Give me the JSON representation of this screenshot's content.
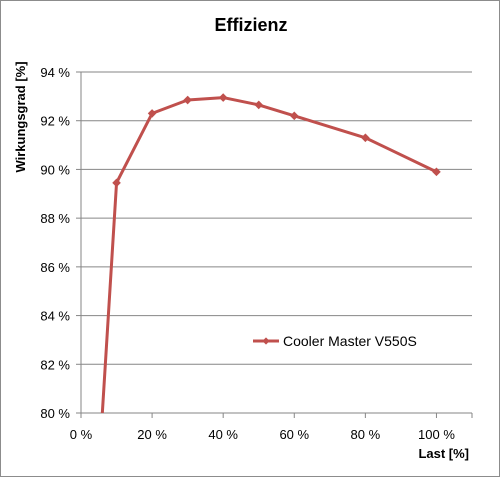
{
  "chart_data": {
    "type": "line",
    "title": "Effizienz",
    "xlabel": "Last [%]",
    "ylabel": "Wirkungsgrad [%]",
    "xlim": [
      0,
      110
    ],
    "ylim": [
      80,
      94
    ],
    "x_ticks": [
      0,
      20,
      40,
      60,
      80,
      100
    ],
    "x_tick_labels": [
      "0 %",
      "20 %",
      "40 %",
      "60 %",
      "80 %",
      "100 %"
    ],
    "y_ticks": [
      80,
      82,
      84,
      86,
      88,
      90,
      92,
      94
    ],
    "y_tick_labels": [
      "80 %",
      "82 %",
      "84 %",
      "86 %",
      "88 %",
      "90 %",
      "92 %",
      "94 %"
    ],
    "grid": true,
    "legend_position": "right-center",
    "series": [
      {
        "name": "Cooler Master V550S",
        "color": "#c0504d",
        "marker": "diamond",
        "x": [
          6,
          10,
          20,
          30,
          40,
          50,
          60,
          80,
          100
        ],
        "y": [
          80.0,
          89.45,
          92.3,
          92.85,
          92.95,
          92.65,
          92.2,
          91.3,
          89.9
        ]
      }
    ]
  }
}
